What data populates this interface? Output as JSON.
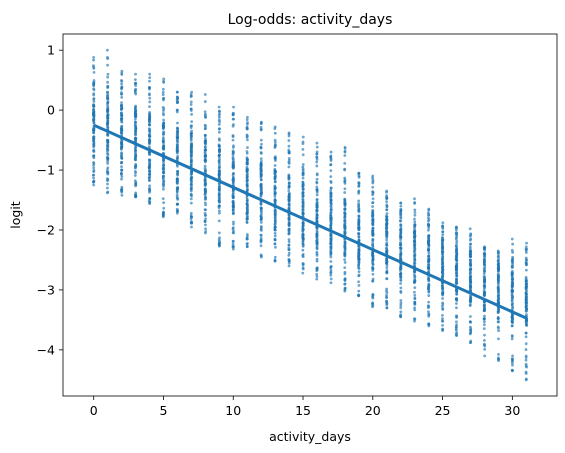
{
  "chart_data": {
    "type": "scatter",
    "title": "Log-odds: activity_days",
    "xlabel": "activity_days",
    "ylabel": "logit",
    "xlim": [
      -2.2,
      33.2
    ],
    "ylim": [
      -4.77,
      1.27
    ],
    "xticks": [
      0,
      5,
      10,
      15,
      20,
      25,
      30
    ],
    "xtick_labels": [
      "0",
      "5",
      "10",
      "15",
      "20",
      "25",
      "30"
    ],
    "yticks": [
      -4,
      -3,
      -2,
      -1,
      0,
      1
    ],
    "ytick_labels": [
      "−4",
      "−3",
      "−2",
      "−1",
      "0",
      "1"
    ],
    "grid": false,
    "series": [
      {
        "kind": "points",
        "color": "#1f77b4",
        "x": [
          0,
          1,
          2,
          3,
          4,
          5,
          6,
          7,
          8,
          9,
          10,
          11,
          12,
          13,
          14,
          15,
          16,
          17,
          18,
          19,
          20,
          21,
          22,
          23,
          24,
          25,
          26,
          27,
          28,
          29,
          30,
          31
        ],
        "ymin": [
          -1.25,
          -1.38,
          -1.42,
          -1.45,
          -1.56,
          -1.78,
          -1.72,
          -1.95,
          -2.05,
          -2.27,
          -2.32,
          -2.28,
          -2.45,
          -2.52,
          -2.6,
          -2.72,
          -2.82,
          -2.88,
          -3.02,
          -3.1,
          -3.28,
          -3.3,
          -3.45,
          -3.52,
          -3.6,
          -3.68,
          -3.76,
          -3.88,
          -4.1,
          -4.18,
          -4.35,
          -4.5
        ],
        "ymax": [
          0.88,
          1.0,
          0.65,
          0.6,
          0.6,
          0.52,
          0.3,
          0.3,
          0.26,
          0.05,
          0.05,
          -0.12,
          -0.2,
          -0.28,
          -0.38,
          -0.45,
          -0.55,
          -0.7,
          -0.62,
          -1.05,
          -1.1,
          -1.35,
          -1.55,
          -1.48,
          -1.65,
          -1.88,
          -1.95,
          -1.98,
          -2.28,
          -2.35,
          -2.15,
          -2.22
        ],
        "q_low": [
          -0.78,
          -0.85,
          -0.95,
          -1.05,
          -1.15,
          -1.22,
          -1.35,
          -1.42,
          -1.52,
          -1.62,
          -1.72,
          -1.8,
          -1.9,
          -1.98,
          -2.08,
          -2.18,
          -2.28,
          -2.36,
          -2.45,
          -2.55,
          -2.65,
          -2.72,
          -2.82,
          -2.9,
          -3.0,
          -3.08,
          -3.18,
          -3.25,
          -3.35,
          -3.45,
          -3.55,
          -3.62
        ],
        "q_high": [
          0.28,
          0.22,
          0.12,
          0.02,
          -0.08,
          -0.18,
          -0.28,
          -0.38,
          -0.48,
          -0.58,
          -0.68,
          -0.78,
          -0.88,
          -0.98,
          -1.08,
          -1.18,
          -1.28,
          -1.38,
          -1.48,
          -1.58,
          -1.68,
          -1.78,
          -1.88,
          -1.98,
          -2.08,
          -2.18,
          -2.28,
          -2.38,
          -2.48,
          -2.58,
          -2.68,
          -2.78
        ]
      },
      {
        "kind": "fit-line",
        "color": "#1f77b4",
        "x": [
          0,
          31
        ],
        "y": [
          -0.25,
          -3.47
        ]
      }
    ]
  }
}
